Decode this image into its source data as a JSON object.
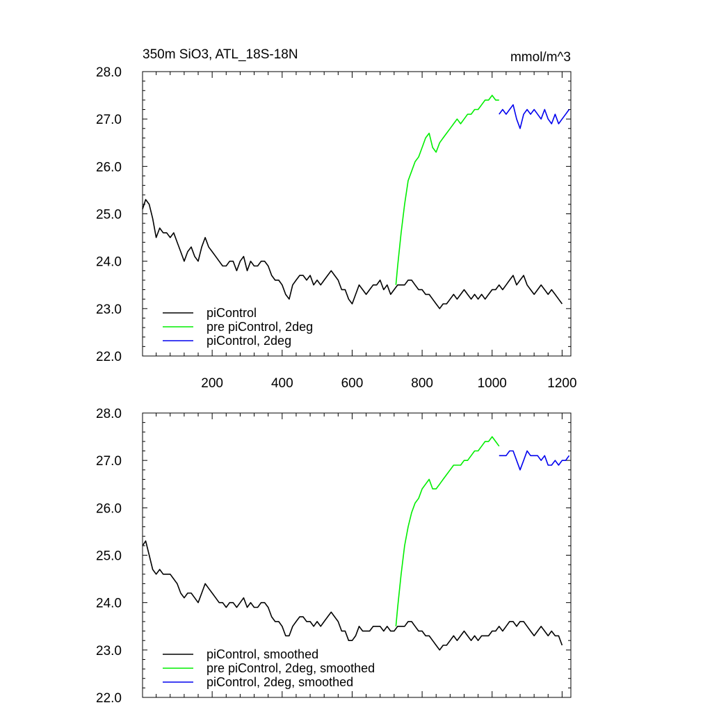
{
  "header": {
    "title": "350m SiO3, ATL_18S-18N",
    "units": "mmol/m^3"
  },
  "colors": {
    "piControl": "#000000",
    "pre_piControl_2deg": "#00ee00",
    "piControl_2deg": "#0000ee"
  },
  "chart_data": [
    {
      "type": "line",
      "panel": "top",
      "xlim": [
        1,
        1225
      ],
      "ylim": [
        22.0,
        28.0
      ],
      "xticks": [
        200,
        400,
        600,
        800,
        1000,
        1200
      ],
      "xtick_labels": [
        "200",
        "400",
        "600",
        "800",
        "1000",
        "1200"
      ],
      "yticks": [
        22.0,
        23.0,
        24.0,
        25.0,
        26.0,
        27.0,
        28.0
      ],
      "ytick_labels": [
        "22.0",
        "23.0",
        "24.0",
        "25.0",
        "26.0",
        "27.0",
        "28.0"
      ],
      "legend_position": "bottom-left",
      "series": [
        {
          "name": "piControl",
          "color": "#000000",
          "x": [
            1,
            10,
            20,
            30,
            40,
            50,
            60,
            70,
            80,
            90,
            100,
            110,
            120,
            130,
            140,
            150,
            160,
            170,
            180,
            190,
            200,
            210,
            220,
            230,
            240,
            250,
            260,
            270,
            280,
            290,
            300,
            310,
            320,
            330,
            340,
            350,
            360,
            370,
            380,
            390,
            400,
            410,
            420,
            430,
            440,
            450,
            460,
            470,
            480,
            490,
            500,
            510,
            520,
            530,
            540,
            550,
            560,
            570,
            580,
            590,
            600,
            610,
            620,
            630,
            640,
            650,
            660,
            670,
            680,
            690,
            700,
            710,
            720,
            730,
            740,
            750,
            760,
            770,
            780,
            790,
            800,
            810,
            820,
            830,
            840,
            850,
            860,
            870,
            880,
            890,
            900,
            910,
            920,
            930,
            940,
            950,
            960,
            970,
            980,
            990,
            1000,
            1010,
            1020,
            1030,
            1040,
            1050,
            1060,
            1070,
            1080,
            1090,
            1100,
            1110,
            1120,
            1130,
            1140,
            1150,
            1160,
            1170,
            1180,
            1190,
            1200
          ],
          "values": [
            25.1,
            25.3,
            25.2,
            24.9,
            24.5,
            24.7,
            24.6,
            24.6,
            24.5,
            24.6,
            24.4,
            24.2,
            24.0,
            24.2,
            24.3,
            24.1,
            24.0,
            24.3,
            24.5,
            24.3,
            24.2,
            24.1,
            24.0,
            23.9,
            23.9,
            24.0,
            24.0,
            23.8,
            24.0,
            24.1,
            23.8,
            24.0,
            23.9,
            23.9,
            24.0,
            24.0,
            23.9,
            23.7,
            23.6,
            23.6,
            23.5,
            23.3,
            23.2,
            23.5,
            23.6,
            23.7,
            23.7,
            23.6,
            23.7,
            23.5,
            23.6,
            23.5,
            23.6,
            23.7,
            23.8,
            23.7,
            23.6,
            23.4,
            23.4,
            23.2,
            23.1,
            23.3,
            23.5,
            23.4,
            23.3,
            23.4,
            23.5,
            23.5,
            23.6,
            23.4,
            23.5,
            23.3,
            23.4,
            23.5,
            23.5,
            23.5,
            23.6,
            23.6,
            23.5,
            23.4,
            23.4,
            23.3,
            23.3,
            23.2,
            23.1,
            23.0,
            23.1,
            23.1,
            23.2,
            23.3,
            23.2,
            23.3,
            23.4,
            23.3,
            23.2,
            23.3,
            23.2,
            23.3,
            23.2,
            23.3,
            23.4,
            23.4,
            23.5,
            23.4,
            23.5,
            23.6,
            23.7,
            23.5,
            23.6,
            23.7,
            23.5,
            23.4,
            23.3,
            23.4,
            23.5,
            23.4,
            23.3,
            23.4,
            23.3,
            23.2,
            23.1
          ]
        },
        {
          "name": "pre piControl, 2deg",
          "color": "#00ee00",
          "x": [
            725,
            730,
            740,
            750,
            760,
            770,
            780,
            790,
            800,
            810,
            820,
            830,
            840,
            850,
            860,
            870,
            880,
            890,
            900,
            910,
            920,
            930,
            940,
            950,
            960,
            970,
            980,
            990,
            1000,
            1010,
            1020
          ],
          "values": [
            23.5,
            23.9,
            24.6,
            25.2,
            25.7,
            25.9,
            26.1,
            26.2,
            26.4,
            26.6,
            26.7,
            26.4,
            26.3,
            26.5,
            26.6,
            26.7,
            26.8,
            26.9,
            27.0,
            26.9,
            27.0,
            27.1,
            27.1,
            27.2,
            27.2,
            27.3,
            27.4,
            27.4,
            27.5,
            27.4,
            27.4
          ]
        },
        {
          "name": "piControl, 2deg",
          "color": "#0000ee",
          "x": [
            1020,
            1030,
            1040,
            1050,
            1060,
            1070,
            1080,
            1090,
            1100,
            1110,
            1120,
            1130,
            1140,
            1150,
            1160,
            1170,
            1180,
            1190,
            1200,
            1210,
            1220
          ],
          "values": [
            27.1,
            27.2,
            27.1,
            27.2,
            27.3,
            27.0,
            26.8,
            27.1,
            27.2,
            27.1,
            27.2,
            27.1,
            27.0,
            27.2,
            27.0,
            26.9,
            27.1,
            26.9,
            27.0,
            27.1,
            27.2
          ]
        }
      ],
      "legend": [
        "piControl",
        "pre piControl, 2deg",
        "piControl, 2deg"
      ]
    },
    {
      "type": "line",
      "panel": "bottom",
      "xlim": [
        1,
        1225
      ],
      "ylim": [
        22.0,
        28.0
      ],
      "xticks": [
        200,
        400,
        600,
        800,
        1000,
        1200
      ],
      "xtick_labels": [],
      "yticks": [
        22.0,
        23.0,
        24.0,
        25.0,
        26.0,
        27.0,
        28.0
      ],
      "ytick_labels": [
        "22.0",
        "23.0",
        "24.0",
        "25.0",
        "26.0",
        "27.0",
        "28.0"
      ],
      "legend_position": "bottom-left",
      "series": [
        {
          "name": "piControl, smoothed",
          "color": "#000000",
          "x": [
            1,
            10,
            20,
            30,
            40,
            50,
            60,
            70,
            80,
            90,
            100,
            110,
            120,
            130,
            140,
            150,
            160,
            170,
            180,
            190,
            200,
            210,
            220,
            230,
            240,
            250,
            260,
            270,
            280,
            290,
            300,
            310,
            320,
            330,
            340,
            350,
            360,
            370,
            380,
            390,
            400,
            410,
            420,
            430,
            440,
            450,
            460,
            470,
            480,
            490,
            500,
            510,
            520,
            530,
            540,
            550,
            560,
            570,
            580,
            590,
            600,
            610,
            620,
            630,
            640,
            650,
            660,
            670,
            680,
            690,
            700,
            710,
            720,
            730,
            740,
            750,
            760,
            770,
            780,
            790,
            800,
            810,
            820,
            830,
            840,
            850,
            860,
            870,
            880,
            890,
            900,
            910,
            920,
            930,
            940,
            950,
            960,
            970,
            980,
            990,
            1000,
            1010,
            1020,
            1030,
            1040,
            1050,
            1060,
            1070,
            1080,
            1090,
            1100,
            1110,
            1120,
            1130,
            1140,
            1150,
            1160,
            1170,
            1180,
            1190,
            1200
          ],
          "values": [
            25.2,
            25.3,
            25.0,
            24.7,
            24.6,
            24.7,
            24.6,
            24.6,
            24.6,
            24.5,
            24.4,
            24.2,
            24.1,
            24.2,
            24.2,
            24.1,
            24.0,
            24.2,
            24.4,
            24.3,
            24.2,
            24.1,
            24.0,
            24.0,
            23.9,
            24.0,
            24.0,
            23.9,
            24.0,
            24.1,
            23.9,
            24.0,
            23.9,
            23.9,
            24.0,
            24.0,
            23.9,
            23.7,
            23.6,
            23.6,
            23.5,
            23.3,
            23.3,
            23.5,
            23.6,
            23.7,
            23.7,
            23.6,
            23.6,
            23.5,
            23.6,
            23.5,
            23.6,
            23.7,
            23.8,
            23.7,
            23.6,
            23.4,
            23.4,
            23.2,
            23.2,
            23.3,
            23.5,
            23.4,
            23.4,
            23.4,
            23.5,
            23.5,
            23.5,
            23.4,
            23.5,
            23.4,
            23.4,
            23.5,
            23.5,
            23.5,
            23.6,
            23.6,
            23.5,
            23.4,
            23.4,
            23.3,
            23.3,
            23.2,
            23.1,
            23.0,
            23.1,
            23.1,
            23.2,
            23.3,
            23.2,
            23.3,
            23.4,
            23.3,
            23.2,
            23.3,
            23.2,
            23.3,
            23.3,
            23.3,
            23.4,
            23.4,
            23.5,
            23.4,
            23.5,
            23.6,
            23.6,
            23.5,
            23.6,
            23.6,
            23.5,
            23.4,
            23.3,
            23.4,
            23.5,
            23.4,
            23.3,
            23.4,
            23.3,
            23.3,
            23.1
          ]
        },
        {
          "name": "pre piControl, 2deg, smoothed",
          "color": "#00ee00",
          "x": [
            725,
            730,
            740,
            750,
            760,
            770,
            780,
            790,
            800,
            810,
            820,
            830,
            840,
            850,
            860,
            870,
            880,
            890,
            900,
            910,
            920,
            930,
            940,
            950,
            960,
            970,
            980,
            990,
            1000,
            1010,
            1020
          ],
          "values": [
            23.5,
            23.9,
            24.6,
            25.2,
            25.6,
            25.9,
            26.1,
            26.2,
            26.4,
            26.5,
            26.6,
            26.4,
            26.4,
            26.5,
            26.6,
            26.7,
            26.8,
            26.9,
            26.9,
            26.9,
            27.0,
            27.0,
            27.1,
            27.2,
            27.2,
            27.3,
            27.4,
            27.4,
            27.5,
            27.4,
            27.3
          ]
        },
        {
          "name": "piControl, 2deg, smoothed",
          "color": "#0000ee",
          "x": [
            1020,
            1030,
            1040,
            1050,
            1060,
            1070,
            1080,
            1090,
            1100,
            1110,
            1120,
            1130,
            1140,
            1150,
            1160,
            1170,
            1180,
            1190,
            1200,
            1210,
            1220
          ],
          "values": [
            27.1,
            27.1,
            27.1,
            27.2,
            27.2,
            27.0,
            26.8,
            27.0,
            27.2,
            27.1,
            27.1,
            27.1,
            27.0,
            27.1,
            26.9,
            26.9,
            27.0,
            26.9,
            27.0,
            27.0,
            27.1
          ]
        }
      ],
      "legend": [
        "piControl, smoothed",
        "pre piControl, 2deg, smoothed",
        "piControl, 2deg, smoothed"
      ]
    }
  ]
}
